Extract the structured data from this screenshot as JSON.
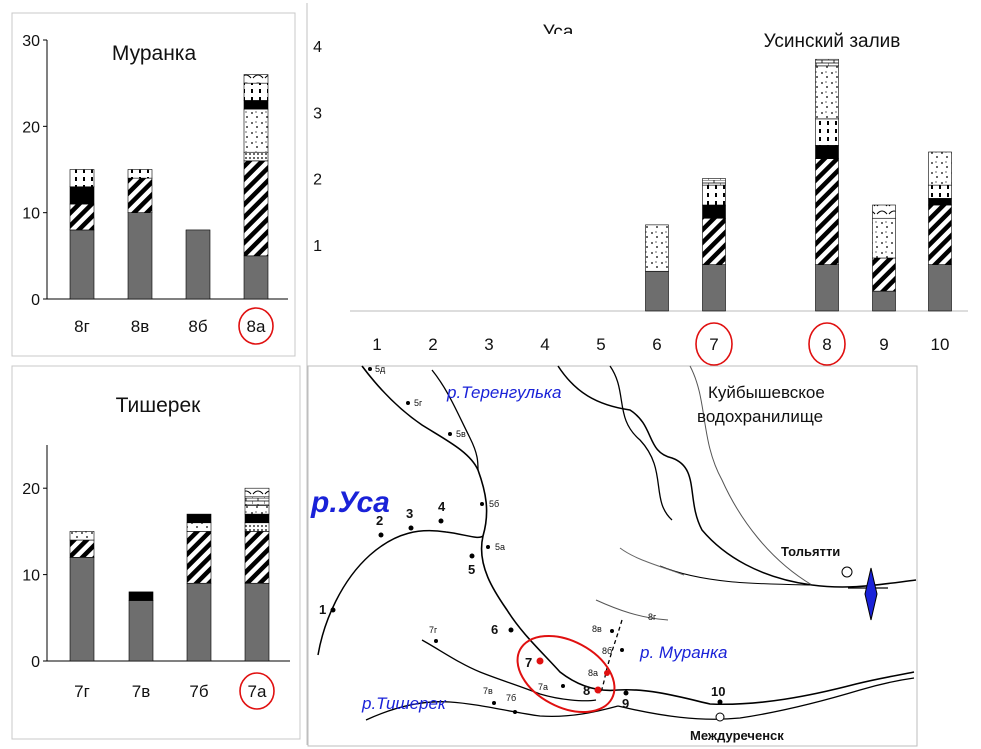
{
  "colors": {
    "base": "#6e6e6e",
    "dark": "#000000",
    "accent_circle": "#e01010",
    "river_label": "#1a22d8"
  },
  "chart_data": [
    {
      "type": "bar",
      "title": "Муранка",
      "categories": [
        "8г",
        "8в",
        "8б",
        "8а"
      ],
      "highlighted": "8а",
      "ylim": [
        0,
        30
      ],
      "yticks": [
        "0",
        "10",
        "20",
        "30"
      ],
      "stacks": [
        [
          {
            "pattern": "solid-gray",
            "value": 8
          },
          {
            "pattern": "diagonal-hatch",
            "value": 3
          },
          {
            "pattern": "solid-black",
            "value": 2
          },
          {
            "pattern": "dashes",
            "value": 2
          }
        ],
        [
          {
            "pattern": "solid-gray",
            "value": 10
          },
          {
            "pattern": "diagonal-hatch",
            "value": 4
          },
          {
            "pattern": "dashes",
            "value": 1
          }
        ],
        [
          {
            "pattern": "solid-gray",
            "value": 8
          }
        ],
        [
          {
            "pattern": "solid-gray",
            "value": 5
          },
          {
            "pattern": "diagonal-hatch",
            "value": 11
          },
          {
            "pattern": "dots",
            "value": 1
          },
          {
            "pattern": "crosses",
            "value": 5
          },
          {
            "pattern": "solid-black",
            "value": 1
          },
          {
            "pattern": "dashes",
            "value": 2
          },
          {
            "pattern": "loops",
            "value": 1
          }
        ]
      ]
    },
    {
      "type": "bar",
      "title": "Тишерек",
      "categories": [
        "7г",
        "7в",
        "7б",
        "7а"
      ],
      "highlighted": "7а",
      "ylim": [
        0,
        25
      ],
      "yticks": [
        "0",
        "10",
        "20"
      ],
      "stacks": [
        [
          {
            "pattern": "solid-gray",
            "value": 12
          },
          {
            "pattern": "diagonal-hatch",
            "value": 2
          },
          {
            "pattern": "crosses",
            "value": 1
          }
        ],
        [
          {
            "pattern": "solid-gray",
            "value": 7
          },
          {
            "pattern": "solid-black",
            "value": 1
          }
        ],
        [
          {
            "pattern": "solid-gray",
            "value": 9
          },
          {
            "pattern": "diagonal-hatch",
            "value": 6
          },
          {
            "pattern": "crosses",
            "value": 1
          },
          {
            "pattern": "solid-black",
            "value": 1
          }
        ],
        [
          {
            "pattern": "solid-gray",
            "value": 9
          },
          {
            "pattern": "diagonal-hatch",
            "value": 6
          },
          {
            "pattern": "dots",
            "value": 1
          },
          {
            "pattern": "solid-black",
            "value": 1
          },
          {
            "pattern": "crosses",
            "value": 1
          },
          {
            "pattern": "bricks",
            "value": 1
          },
          {
            "pattern": "loops",
            "value": 1
          }
        ]
      ]
    },
    {
      "type": "bar",
      "title": "Уса",
      "title2": "Усинский залив",
      "categories": [
        "1",
        "2",
        "3",
        "4",
        "5",
        "6",
        "7",
        "8",
        "9",
        "10"
      ],
      "highlighted": [
        "7",
        "8"
      ],
      "ylim": [
        0,
        4
      ],
      "yticks": [
        "1",
        "2",
        "3",
        "4"
      ],
      "stacks": [
        [],
        [],
        [],
        [],
        [],
        [
          {
            "pattern": "solid-gray",
            "value": 0.6
          },
          {
            "pattern": "crosses",
            "value": 0.7
          }
        ],
        [
          {
            "pattern": "solid-gray",
            "value": 0.7
          },
          {
            "pattern": "diagonal-hatch",
            "value": 0.7
          },
          {
            "pattern": "solid-black",
            "value": 0.2
          },
          {
            "pattern": "dashes",
            "value": 0.3
          },
          {
            "pattern": "bricks",
            "value": 0.1
          }
        ],
        [
          {
            "pattern": "solid-gray",
            "value": 0.7
          },
          {
            "pattern": "diagonal-hatch",
            "value": 1.6
          },
          {
            "pattern": "solid-black",
            "value": 0.2
          },
          {
            "pattern": "dashes",
            "value": 0.4
          },
          {
            "pattern": "crosses",
            "value": 0.8
          },
          {
            "pattern": "bricks",
            "value": 0.1
          }
        ],
        [
          {
            "pattern": "solid-gray",
            "value": 0.3
          },
          {
            "pattern": "diagonal-hatch",
            "value": 0.5
          },
          {
            "pattern": "crosses",
            "value": 0.6
          },
          {
            "pattern": "loops",
            "value": 0.2
          }
        ],
        [
          {
            "pattern": "solid-gray",
            "value": 0.7
          },
          {
            "pattern": "diagonal-hatch",
            "value": 0.9
          },
          {
            "pattern": "solid-black",
            "value": 0.1
          },
          {
            "pattern": "dashes",
            "value": 0.2
          },
          {
            "pattern": "crosses",
            "value": 0.5
          }
        ]
      ]
    }
  ],
  "map": {
    "labels": {
      "kuib1": "Куйбышевское",
      "kuib2": "водохранилище",
      "terengulka": "р.Теренгулька",
      "usa": "р.Уса",
      "muranka": "р. Муранка",
      "tisherek": "р.Тишерек",
      "togliatti": "Тольятти",
      "mezhdurechensk": "Междуреченск"
    },
    "points": [
      "1",
      "2",
      "3",
      "4",
      "5",
      "6",
      "7",
      "8",
      "9",
      "10",
      "5д",
      "5г",
      "5в",
      "5б",
      "5а",
      "7г",
      "7в",
      "7б",
      "7а",
      "8в",
      "8б",
      "8а",
      "8г"
    ]
  }
}
